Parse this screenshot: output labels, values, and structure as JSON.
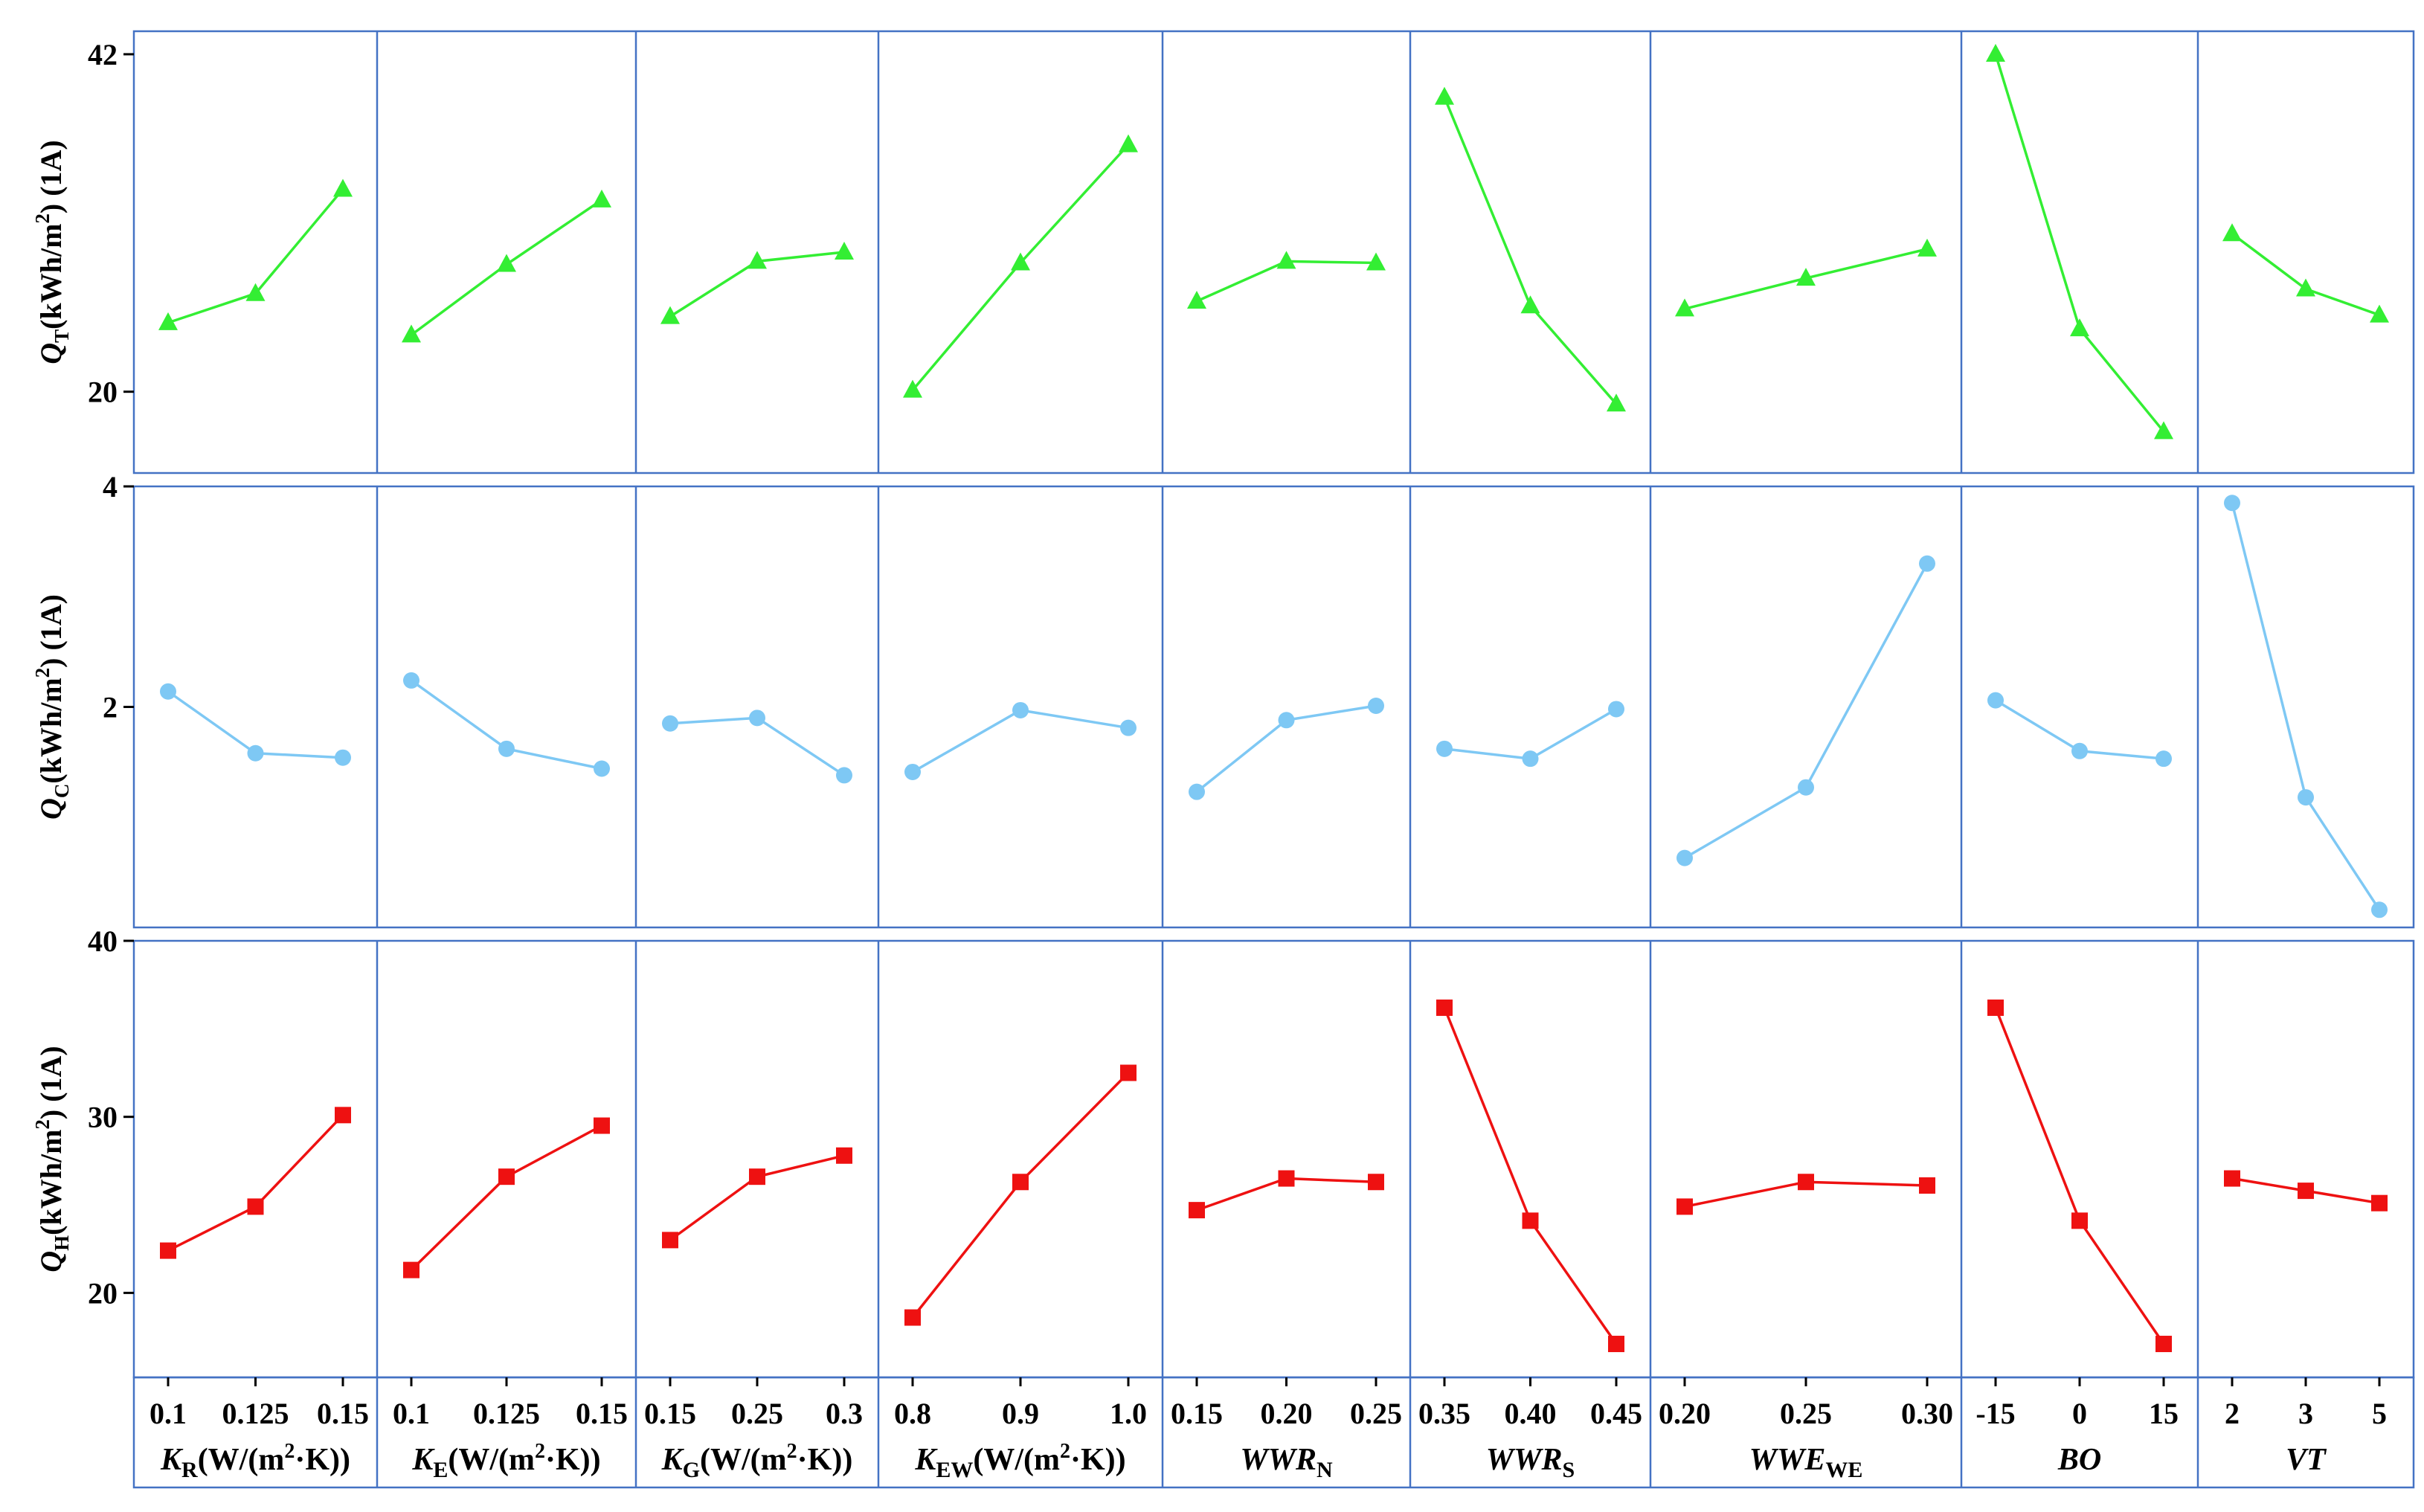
{
  "figure": {
    "colors": {
      "frame": "#4472C4",
      "qt": "#33EE33",
      "qc": "#7EC8F4",
      "qh": "#EE1111"
    }
  },
  "chart_data": {
    "type": "line",
    "rows": [
      {
        "id": "qt",
        "ylabel_main": "Q",
        "ylabel_sub": "T",
        "ylabel_unit": "(kWh/m",
        "ylabel_sup": "2",
        "ylabel_tail": ") (1A)",
        "ylim": [
          14.7,
          43.5
        ],
        "yticks": [
          "42",
          "20"
        ],
        "ytick_values": [
          42,
          20
        ],
        "marker": "triangle",
        "color": "#33EE33"
      },
      {
        "id": "qc",
        "ylabel_main": "Q",
        "ylabel_sub": "C",
        "ylabel_unit": "(kWh/m",
        "ylabel_sup": "2",
        "ylabel_tail": ") (1A)",
        "ylim": [
          0,
          4
        ],
        "yticks": [
          "4",
          "2"
        ],
        "ytick_values": [
          4,
          2
        ],
        "marker": "circle",
        "color": "#7EC8F4"
      },
      {
        "id": "qh",
        "ylabel_main": "Q",
        "ylabel_sub": "H",
        "ylabel_unit": "(kWh/m",
        "ylabel_sup": "2",
        "ylabel_tail": ") (1A)",
        "ylim": [
          15.2,
          40
        ],
        "yticks": [
          "40",
          "30",
          "20"
        ],
        "ytick_values": [
          40,
          30,
          20
        ],
        "marker": "square",
        "color": "#EE1111"
      }
    ],
    "factors": [
      {
        "label_main": "K",
        "label_sub": "R",
        "label_unit": "(W/(m",
        "label_sup": "2",
        "label_tail": "·K))",
        "italic": false,
        "levels": [
          "0.1",
          "0.125",
          "0.15"
        ],
        "qt": [
          24.5,
          26.4,
          33.2
        ],
        "qc": [
          2.14,
          1.58,
          1.54
        ],
        "qh": [
          22.4,
          24.9,
          30.1
        ]
      },
      {
        "label_main": "K",
        "label_sub": "E",
        "label_unit": "(W/(m",
        "label_sup": "2",
        "label_tail": "·K))",
        "italic": false,
        "levels": [
          "0.1",
          "0.125",
          "0.15"
        ],
        "qt": [
          23.7,
          28.3,
          32.5
        ],
        "qc": [
          2.24,
          1.62,
          1.44
        ],
        "qh": [
          21.3,
          26.6,
          29.5
        ]
      },
      {
        "label_main": "K",
        "label_sub": "G",
        "label_unit": "(W/(m",
        "label_sup": "2",
        "label_tail": "·K))",
        "italic": false,
        "levels": [
          "0.15",
          "0.25",
          "0.3"
        ],
        "qt": [
          24.9,
          28.5,
          29.1
        ],
        "qc": [
          1.85,
          1.9,
          1.38
        ],
        "qh": [
          23.0,
          26.6,
          27.8
        ]
      },
      {
        "label_main": "K",
        "label_sub": "EW",
        "label_unit": "(W/(m",
        "label_sup": "2",
        "label_tail": "·K))",
        "italic": false,
        "levels": [
          "0.8",
          "0.9",
          "1.0"
        ],
        "qt": [
          20.1,
          28.4,
          36.1
        ],
        "qc": [
          1.41,
          1.97,
          1.81
        ],
        "qh": [
          18.6,
          26.3,
          32.5
        ]
      },
      {
        "label_main": "WWR",
        "label_sub": "N",
        "label_unit": "",
        "label_sup": "",
        "label_tail": "",
        "italic": true,
        "levels": [
          "0.15",
          "0.20",
          "0.25"
        ],
        "qt": [
          25.9,
          28.5,
          28.4
        ],
        "qc": [
          1.23,
          1.88,
          2.01
        ],
        "qh": [
          24.7,
          26.5,
          26.3
        ]
      },
      {
        "label_main": "WWR",
        "label_sub": "S",
        "label_unit": "",
        "label_sup": "",
        "label_tail": "",
        "italic": true,
        "levels": [
          "0.35",
          "0.40",
          "0.45"
        ],
        "qt": [
          39.2,
          25.6,
          19.2
        ],
        "qc": [
          1.62,
          1.53,
          1.98
        ],
        "qh": [
          36.2,
          24.1,
          17.1
        ]
      },
      {
        "label_main": "WWE",
        "label_sub": "WE",
        "label_unit": "",
        "label_sup": "",
        "label_tail": "",
        "italic": true,
        "levels": [
          "0.20",
          "0.25",
          "0.30"
        ],
        "qt": [
          25.4,
          27.4,
          29.3
        ],
        "qc": [
          0.63,
          1.27,
          3.3
        ],
        "qh": [
          24.9,
          26.3,
          26.1
        ]
      },
      {
        "label_main": "BO",
        "label_sub": "",
        "label_unit": "",
        "label_sup": "",
        "label_tail": "",
        "italic": true,
        "levels": [
          "-15",
          "0",
          "15"
        ],
        "qt": [
          42.0,
          24.1,
          17.4
        ],
        "qc": [
          2.06,
          1.6,
          1.53
        ],
        "qh": [
          36.2,
          24.1,
          17.1
        ]
      },
      {
        "label_main": "VT",
        "label_sub": "",
        "label_unit": "",
        "label_sup": "",
        "label_tail": "",
        "italic": true,
        "levels": [
          "2",
          "3",
          "5"
        ],
        "qt": [
          30.3,
          26.7,
          25.0
        ],
        "qc": [
          3.85,
          1.18,
          0.16
        ],
        "qh": [
          26.5,
          25.8,
          25.1
        ]
      }
    ]
  }
}
